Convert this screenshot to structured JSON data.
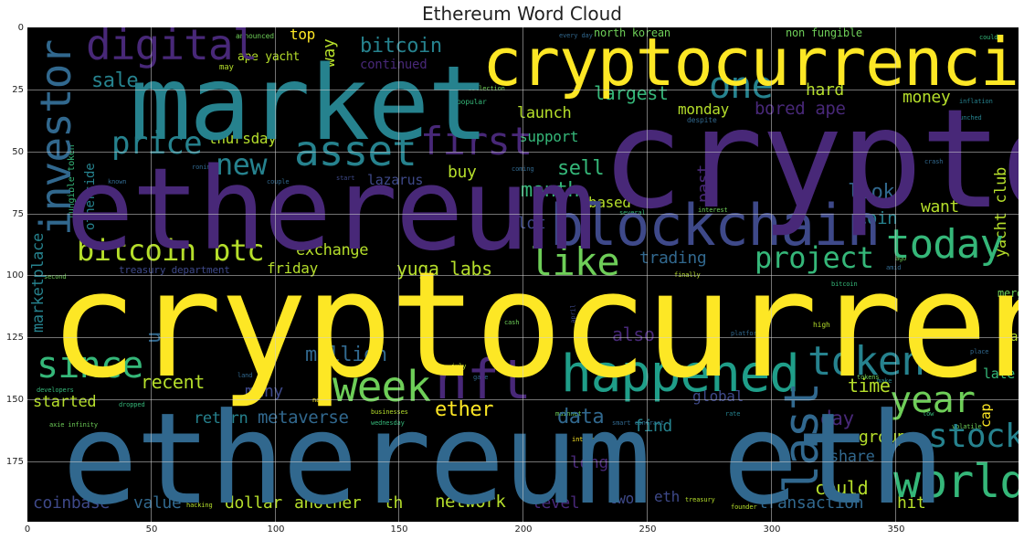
{
  "title": "Ethereum Word Cloud",
  "axes": {
    "x_ticks": [
      "0",
      "50",
      "100",
      "150",
      "200",
      "250",
      "300",
      "350"
    ],
    "y_ticks": [
      "0",
      "25",
      "50",
      "75",
      "100",
      "125",
      "150",
      "175"
    ]
  },
  "palette": {
    "yellow": "#fde725",
    "lime": "#b5de2b",
    "green": "#6ece58",
    "teal": "#35b779",
    "tealblue": "#1f9e89",
    "cyan": "#26828e",
    "blue": "#31688e",
    "indigo": "#3e4989",
    "purple": "#482878",
    "violet": "#440154"
  },
  "words": {
    "cryptocurrency": "cryptocurrency",
    "ethereum_eth": "ethereum eth",
    "crypto": "crypto",
    "market": "market",
    "ethereum": "ethereum",
    "cryptocurrencies": "cryptocurrencies",
    "blockchain": "blockchain",
    "happened": "happened",
    "nft": "nft",
    "investor": "investor",
    "asset": "asset",
    "digital": "digital",
    "week": "week",
    "last": "last",
    "world": "world",
    "today": "today",
    "token": "token",
    "since": "since",
    "year": "year",
    "stock": "stock",
    "like": "like",
    "price": "price",
    "first": "first",
    "one": "one",
    "bitcoin_btc": "bitcoin btc",
    "bitcoin": "bitcoin",
    "new": "new",
    "project": "project",
    "million": "million",
    "ether": "ether",
    "yuga_labs": "yuga labs",
    "sell": "sell",
    "month": "month",
    "largest": "largest",
    "launch": "launch",
    "sale": "sale",
    "metaverse": "metaverse",
    "data": "data",
    "could": "could",
    "group": "group",
    "recent": "recent",
    "many": "many",
    "started": "started",
    "return": "return",
    "coinbase": "coinbase",
    "value": "value",
    "dollar": "dollar",
    "another": "another",
    "th": "th",
    "network": "network",
    "level": "level",
    "two": "two",
    "eth": "eth",
    "transaction": "transaction",
    "hit": "hit",
    "share": "share",
    "time": "time",
    "global": "global",
    "day": "day",
    "find": "find",
    "long": "long",
    "also": "also",
    "trading": "trading",
    "exchange": "exchange",
    "friday": "friday",
    "thursday": "thursday",
    "monday": "monday",
    "support": "support",
    "money": "money",
    "hard": "hard",
    "bored_ape": "bored ape",
    "look": "look",
    "coin": "coin",
    "want": "want",
    "based": "based",
    "lot": "lot",
    "past": "past",
    "buy": "buy",
    "lazarus": "lazarus",
    "top": "top",
    "way": "way",
    "continued": "continued",
    "ape_yacht": "ape yacht",
    "north_korean": "north korean",
    "non_fungible": "non fungible",
    "yacht_club": "yacht club",
    "merge": "merge",
    "late": "late",
    "bad": "bad",
    "cap": "cap",
    "marketplace": "marketplace",
    "otherside": "otherside",
    "fungible_token": "fungible token",
    "treasury_department": "treasury department",
    "u": "u",
    "announced": "announced",
    "may": "may",
    "popular": "popular",
    "collection": "collection",
    "every_day": "every day",
    "despite": "despite",
    "launched": "launched",
    "inflation": "inflation",
    "could_small": "could",
    "coming": "coming",
    "start": "start",
    "couple": "couple",
    "known": "known",
    "ronin": "ronin",
    "interest": "interest",
    "april": "april",
    "july": "july",
    "high": "high",
    "platform": "platform",
    "place": "place",
    "mainnet": "mainnet",
    "name": "name",
    "land": "land",
    "developers": "developers",
    "axie_infinity": "axie infinity",
    "businesses": "businesses",
    "wednesday": "wednesday",
    "smart_contract": "smart contract",
    "dropped": "dropped",
    "hacking": "hacking",
    "founder": "founder",
    "treasury": "treasury",
    "rate": "rate",
    "volatile": "volatile",
    "crash": "crash",
    "tokens": "tokens",
    "make": "make",
    "low": "low",
    "cash": "cash",
    "game": "game",
    "amid": "amid",
    "ago": "ago",
    "finally": "finally",
    "second": "second",
    "several": "several",
    "bitcoin_small": "bitcoin"
  }
}
